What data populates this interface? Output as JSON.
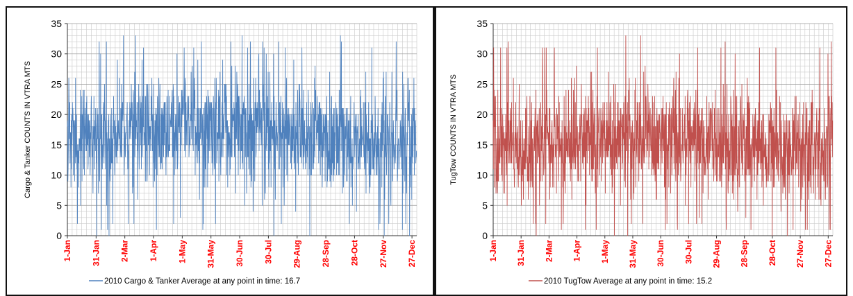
{
  "chart_data": [
    {
      "type": "line",
      "ylabel": "Cargo & Tanker COUNTS IN VTRA MTS",
      "ylim": [
        0,
        35
      ],
      "y_ticks": [
        "0",
        "5",
        "10",
        "15",
        "20",
        "25",
        "30",
        "35"
      ],
      "x_ticks": [
        "1-Jan",
        "31-Jan",
        "2-Mar",
        "1-Apr",
        "1-May",
        "31-May",
        "30-Jun",
        "30-Jul",
        "29-Aug",
        "28-Sep",
        "28-Oct",
        "27-Nov",
        "27-Dec"
      ],
      "x_tick_days": [
        0,
        30,
        60,
        90,
        120,
        150,
        180,
        210,
        240,
        270,
        300,
        330,
        360
      ],
      "x_range_days": [
        0,
        365
      ],
      "grid": true,
      "legend_position": "bottom",
      "series": [
        {
          "name": "2010 Cargo & Tanker Average at any point in time: 16.7",
          "color": "#4f81bd",
          "mean": 16.7,
          "samples_per_day": 4,
          "days": 365,
          "min": 0,
          "max": 33,
          "seed": 71
        }
      ]
    },
    {
      "type": "line",
      "ylabel": "TugTow COUNTS IN VTRA MTS",
      "ylim": [
        0,
        35
      ],
      "y_ticks": [
        "0",
        "5",
        "10",
        "15",
        "20",
        "25",
        "30",
        "35"
      ],
      "x_ticks": [
        "1-Jan",
        "31-Jan",
        "2-Mar",
        "1-Apr",
        "1-May",
        "31-May",
        "30-Jun",
        "30-Jul",
        "29-Aug",
        "28-Sep",
        "28-Oct",
        "27-Nov",
        "27-Dec"
      ],
      "x_tick_days": [
        0,
        30,
        60,
        90,
        120,
        150,
        180,
        210,
        240,
        270,
        300,
        330,
        360
      ],
      "x_range_days": [
        0,
        365
      ],
      "grid": true,
      "legend_position": "bottom",
      "series": [
        {
          "name": "2010 TugTow Average at any point in time: 15.2",
          "color": "#c0504d",
          "mean": 15.2,
          "samples_per_day": 4,
          "days": 365,
          "min": 0,
          "max": 33,
          "seed": 29
        }
      ]
    }
  ]
}
